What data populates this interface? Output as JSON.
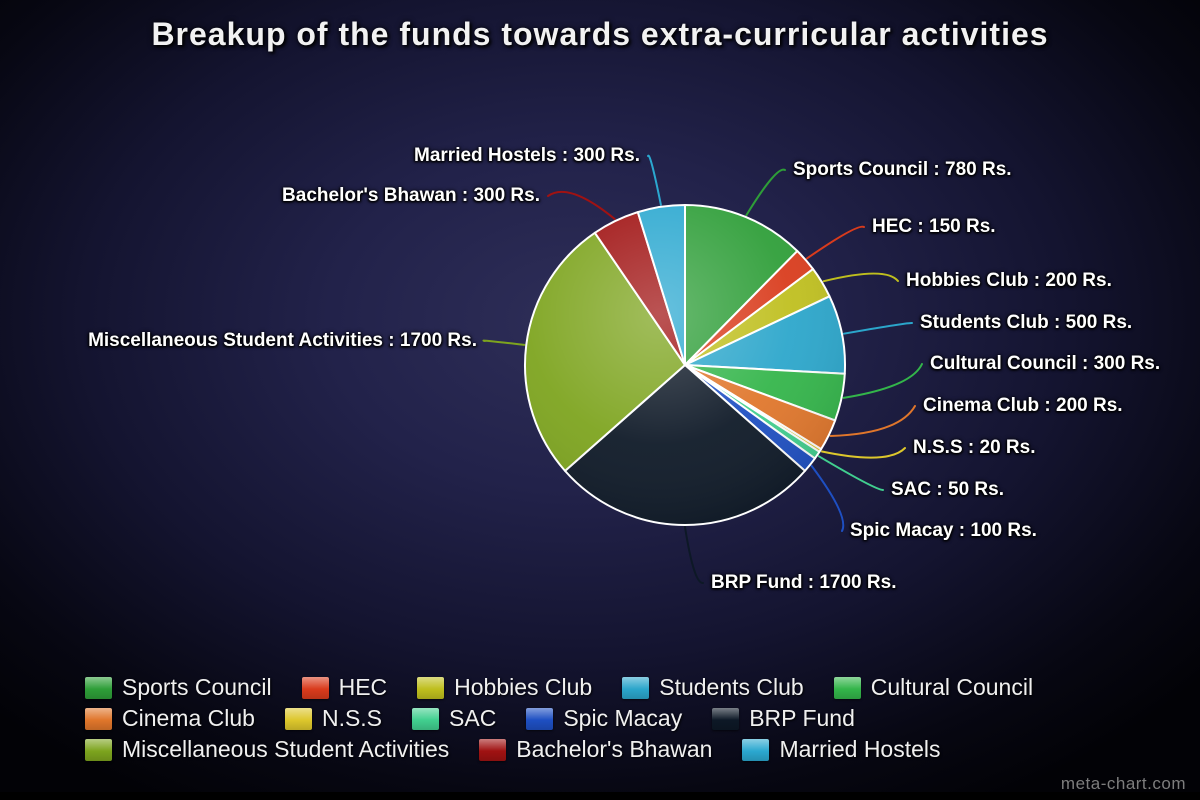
{
  "title": "Breakup of the funds towards extra-curricular activities",
  "watermark": "meta-chart.com",
  "chart_data": {
    "type": "pie",
    "title": "Breakup of the funds towards extra-curricular activities",
    "unit": "Rs.",
    "legend_position": "bottom",
    "segments": [
      {
        "label": "Sports Council",
        "value": 780,
        "color": "#2e9e38",
        "callout": "Sports Council : 780 Rs."
      },
      {
        "label": "HEC",
        "value": 150,
        "color": "#d93b1c",
        "callout": "HEC : 150 Rs."
      },
      {
        "label": "Hobbies Club",
        "value": 200,
        "color": "#bfbf1e",
        "callout": "Hobbies Club : 200 Rs."
      },
      {
        "label": "Students Club",
        "value": 500,
        "color": "#2ba6cb",
        "callout": "Students Club : 500 Rs."
      },
      {
        "label": "Cultural Council",
        "value": 300,
        "color": "#33b54a",
        "callout": "Cultural Council : 300 Rs."
      },
      {
        "label": "Cinema Club",
        "value": 200,
        "color": "#e0762b",
        "callout": "Cinema Club : 200 Rs."
      },
      {
        "label": "N.S.S",
        "value": 20,
        "color": "#ddc72c",
        "callout": "N.S.S : 20 Rs."
      },
      {
        "label": "SAC",
        "value": 50,
        "color": "#41cf8f",
        "callout": "SAC : 50 Rs."
      },
      {
        "label": "Spic Macay",
        "value": 100,
        "color": "#1e4fc2",
        "callout": "Spic Macay : 100 Rs."
      },
      {
        "label": "BRP Fund",
        "value": 1700,
        "color": "#0d1826",
        "callout": "BRP Fund : 1700 Rs."
      },
      {
        "label": "Miscellaneous Student Activities",
        "value": 1700,
        "color": "#7da41e",
        "callout": "Miscellaneous Student Activities : 1700 Rs."
      },
      {
        "label": "Bachelor's Bhawan",
        "value": 300,
        "color": "#a01212",
        "callout": "Bachelor's Bhawan : 300 Rs."
      },
      {
        "label": "Married Hostels",
        "value": 300,
        "color": "#2ba8d0",
        "callout": "Married Hostels : 300 Rs."
      }
    ]
  }
}
